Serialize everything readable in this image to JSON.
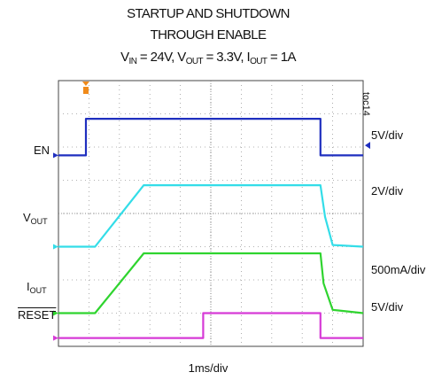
{
  "title": {
    "line1": "STARTUP AND SHUTDOWN",
    "line2": "THROUGH ENABLE",
    "line3": {
      "vin_label": "V",
      "vin_sub": "IN",
      "vin_value": " = 24V, ",
      "vout_label": "V",
      "vout_sub": "OUT",
      "vout_value": " = 3.3V, ",
      "iout_label": "I",
      "iout_sub": "OUT",
      "iout_value": " = 1A"
    }
  },
  "figure_id": "toc14",
  "x_scale": "1ms/div",
  "channels": {
    "en": {
      "label": "EN",
      "scale": "5V/div",
      "color": "#1f2fbf"
    },
    "vout": {
      "label": "V",
      "sub": "OUT",
      "scale": "2V/div",
      "color": "#33dde8"
    },
    "iout": {
      "label": "I",
      "sub": "OUT",
      "scale": "500mA/div",
      "color": "#2fd42f"
    },
    "reset": {
      "label": "RESET",
      "scale": "5V/div",
      "color": "#d63ad6"
    }
  },
  "trigger_color": "#f08a1a",
  "chart_data": {
    "type": "line",
    "x_unit": "ms",
    "grid": true,
    "xlim": [
      0,
      10
    ],
    "ylim_divisions": [
      0,
      8
    ],
    "series": [
      {
        "name": "EN",
        "x": [
          0,
          0.9,
          0.9,
          8.6,
          8.6,
          10
        ],
        "y": [
          5.75,
          5.75,
          6.85,
          6.85,
          5.75,
          5.75
        ]
      },
      {
        "name": "VOUT",
        "x": [
          0,
          1.2,
          2.8,
          8.6,
          8.75,
          9.0,
          10
        ],
        "y": [
          3.0,
          3.0,
          4.85,
          4.85,
          3.9,
          3.05,
          3.0
        ]
      },
      {
        "name": "IOUT",
        "x": [
          0,
          1.2,
          2.8,
          8.6,
          8.7,
          9.0,
          10
        ],
        "y": [
          1.0,
          1.0,
          2.8,
          2.8,
          1.9,
          1.1,
          1.0
        ]
      },
      {
        "name": "RESET",
        "x": [
          0,
          4.75,
          4.75,
          8.6,
          8.6,
          10
        ],
        "y": [
          0.25,
          0.25,
          1.0,
          1.0,
          0.25,
          0.25
        ]
      }
    ]
  }
}
